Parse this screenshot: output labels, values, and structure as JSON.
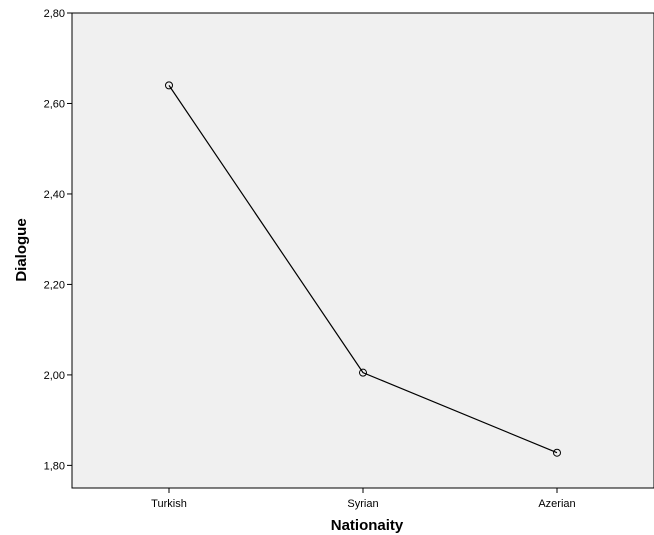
{
  "chart_data": {
    "type": "line",
    "title": "",
    "xlabel": "Nationaity",
    "ylabel": "Dialogue",
    "categories": [
      "Turkish",
      "Syrian",
      "Azerian"
    ],
    "series": [
      {
        "values": [
          2.64,
          2.005,
          1.828
        ]
      }
    ],
    "ylim": [
      1.75,
      2.8
    ],
    "yticks": [
      1.8,
      2.0,
      2.2,
      2.4,
      2.6,
      2.8
    ],
    "ytick_labels": [
      "1,80",
      "2,00",
      "2,20",
      "2,40",
      "2,60",
      "2,80"
    ],
    "grid": false,
    "legend": "none",
    "marker": "open-circle",
    "plot_background": "#f0f0f0",
    "line_color": "#000000"
  }
}
